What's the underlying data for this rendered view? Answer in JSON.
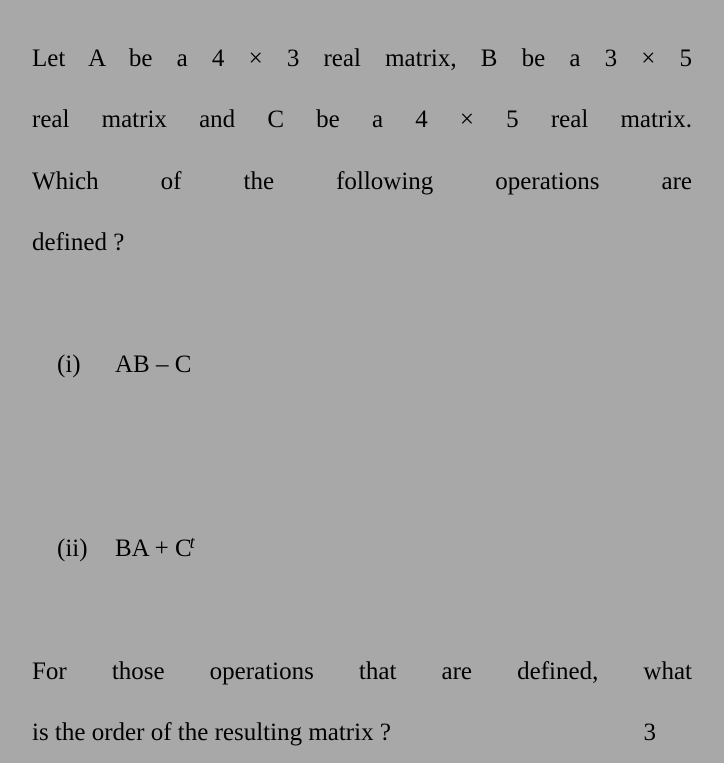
{
  "background_color": "#a8a8a8",
  "text_color": "#000000",
  "font_family": "Times New Roman, serif",
  "font_size_pt": 19,
  "line_height": 2.45,
  "question": {
    "stem_line1": "Let A be a 4 × 3 real matrix, B be a 3 × 5",
    "stem_line2": "real matrix and C be a 4 × 5 real matrix.",
    "stem_line3": "Which of the following operations are",
    "stem_line4": "defined ?",
    "options": [
      {
        "label": "(i)",
        "text": "AB – C"
      },
      {
        "label": "(ii)",
        "text_prefix": "BA + C",
        "superscript": "t"
      }
    ],
    "tail_line1": "For those operations that are defined, what",
    "tail_line2": "is the order of the resulting matrix ?",
    "marks": "3"
  }
}
